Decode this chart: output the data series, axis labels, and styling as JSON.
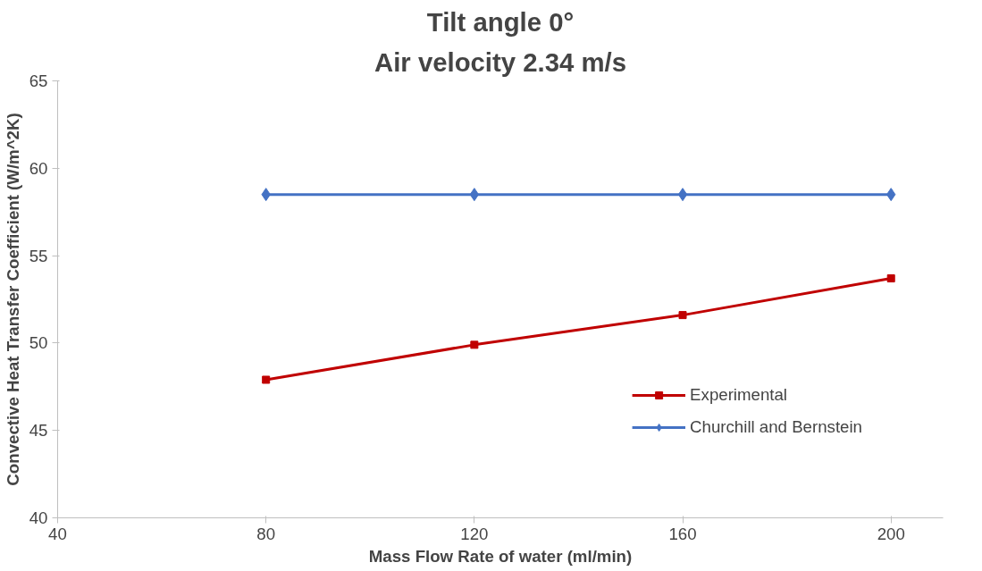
{
  "chart_data": {
    "type": "line",
    "title": "Tilt angle 0°",
    "subtitle": "Air velocity 2.34 m/s",
    "xlabel": "Mass Flow Rate of water (ml/min)",
    "ylabel": "Convective Heat Transfer Coefficient (W/m^2K)",
    "x": [
      80,
      120,
      160,
      200
    ],
    "series": [
      {
        "name": "Experimental",
        "color": "#c00000",
        "marker": "square",
        "values": [
          47.9,
          49.9,
          51.6,
          53.7
        ]
      },
      {
        "name": "Churchill and Bernstein",
        "color": "#4472c4",
        "marker": "diamond",
        "values": [
          58.5,
          58.5,
          58.5,
          58.5
        ]
      }
    ],
    "xlim": [
      40,
      210
    ],
    "xticks": [
      40,
      80,
      120,
      160,
      200
    ],
    "ylim": [
      40,
      65
    ],
    "yticks": [
      40,
      45,
      50,
      55,
      60,
      65
    ],
    "grid": false,
    "legend": "bottom right",
    "line_style": "solid"
  }
}
